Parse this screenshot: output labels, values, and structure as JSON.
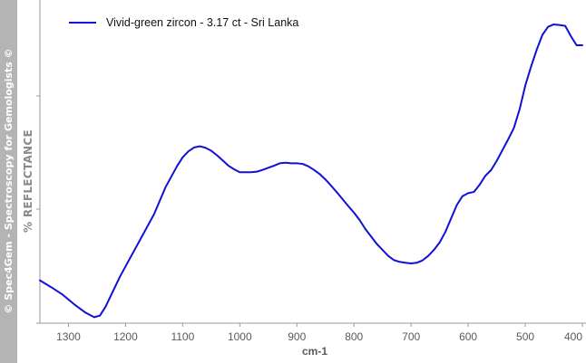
{
  "copyright": "© Spec4Gem - Spectroscopy for Gemologists ©",
  "chart_data": {
    "type": "line",
    "xlabel": "cm-1",
    "ylabel": "% REFLECTANCE",
    "x_reversed": true,
    "xlim": [
      1350,
      400
    ],
    "ylim": [
      0,
      1
    ],
    "x_ticks": [
      1300,
      1200,
      1100,
      1000,
      900,
      800,
      700,
      600,
      500,
      400
    ],
    "x_tick_labels": [
      "1300",
      "1200",
      "1100",
      "1000",
      "900",
      "800",
      "700",
      "600",
      "500",
      "400"
    ],
    "y_ticks": [
      0.0,
      0.335,
      0.67,
      1.0
    ],
    "y_tick_labels_shown": false,
    "grid": false,
    "legend_position": "top-left",
    "series": [
      {
        "name": "Vivid-green zircon - 3.17 ct - Sri Lanka",
        "color": "#1010d8",
        "x": [
          1350,
          1330,
          1310,
          1290,
          1270,
          1255,
          1245,
          1235,
          1225,
          1210,
          1190,
          1170,
          1150,
          1130,
          1110,
          1100,
          1090,
          1080,
          1070,
          1060,
          1050,
          1040,
          1030,
          1020,
          1010,
          1000,
          990,
          980,
          970,
          960,
          950,
          940,
          930,
          920,
          910,
          900,
          890,
          880,
          870,
          860,
          850,
          840,
          830,
          820,
          810,
          800,
          790,
          780,
          770,
          760,
          750,
          740,
          730,
          720,
          710,
          700,
          690,
          680,
          670,
          660,
          650,
          640,
          630,
          620,
          610,
          600,
          590,
          580,
          570,
          560,
          550,
          540,
          530,
          520,
          510,
          500,
          490,
          480,
          470,
          460,
          450,
          440,
          430,
          420,
          410,
          400
        ],
        "y": [
          0.128,
          0.105,
          0.08,
          0.048,
          0.02,
          0.005,
          0.01,
          0.04,
          0.08,
          0.14,
          0.21,
          0.28,
          0.35,
          0.44,
          0.51,
          0.54,
          0.56,
          0.573,
          0.577,
          0.572,
          0.562,
          0.547,
          0.53,
          0.512,
          0.5,
          0.49,
          0.49,
          0.49,
          0.492,
          0.498,
          0.505,
          0.512,
          0.52,
          0.522,
          0.52,
          0.52,
          0.518,
          0.51,
          0.498,
          0.484,
          0.466,
          0.445,
          0.423,
          0.4,
          0.377,
          0.355,
          0.33,
          0.3,
          0.275,
          0.25,
          0.23,
          0.21,
          0.196,
          0.19,
          0.187,
          0.185,
          0.187,
          0.195,
          0.21,
          0.23,
          0.255,
          0.29,
          0.335,
          0.38,
          0.41,
          0.42,
          0.424,
          0.448,
          0.478,
          0.497,
          0.528,
          0.564,
          0.6,
          0.638,
          0.7,
          0.78,
          0.843,
          0.9,
          0.95,
          0.977,
          0.985,
          0.983,
          0.98,
          0.945,
          0.915,
          0.915
        ]
      }
    ]
  }
}
